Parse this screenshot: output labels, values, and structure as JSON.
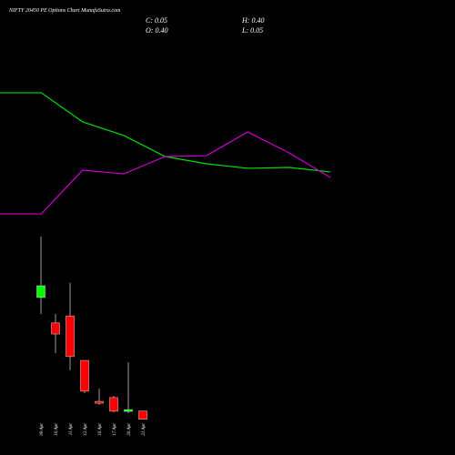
{
  "chart_data": [
    {
      "type": "candlestick",
      "title": "NIFTY 20450  PE Options  Chart MunafaSutra.com",
      "info": [
        "C: 0.05",
        "H: 0.40",
        "O: 0.40",
        "L: 0.05"
      ],
      "categories": [
        "09 Apr",
        "10 Apr",
        "11 Apr",
        "12 Apr",
        "16 Apr",
        "17 Apr",
        "20 Apr",
        "21 Apr"
      ],
      "open": [
        5.22,
        4.14,
        4.44,
        2.55,
        0.81,
        0.97,
        0.39,
        0.4
      ],
      "high": [
        7.81,
        4.52,
        5.84,
        2.55,
        1.35,
        1.04,
        2.47,
        0.4
      ],
      "low": [
        4.52,
        2.86,
        2.13,
        1.16,
        0.66,
        0.35,
        0.31,
        0.05
      ],
      "close": [
        5.72,
        3.67,
        2.71,
        1.24,
        0.73,
        0.39,
        0.46,
        0.05
      ],
      "up_color": "#00ff00",
      "down_color": "#ff0000",
      "ylim": [
        0,
        8
      ]
    },
    {
      "type": "line",
      "x": [
        0,
        1,
        2,
        3,
        4,
        5,
        6,
        7,
        8
      ],
      "xlim": [
        0,
        8
      ],
      "series": [
        {
          "color": "#00dd00",
          "values": [
            8.63,
            8.63,
            6.63,
            5.69,
            4.25,
            3.75,
            3.44,
            3.5,
            3.19
          ]
        },
        {
          "color": "#cc00cc",
          "values": [
            0.31,
            0.31,
            3.31,
            3.06,
            4.25,
            4.31,
            5.94,
            4.5,
            2.81
          ]
        }
      ],
      "ylim": [
        0,
        10
      ]
    }
  ]
}
